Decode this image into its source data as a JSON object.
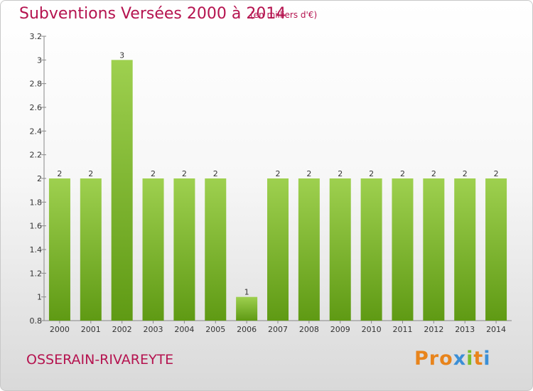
{
  "header": {
    "title": "Subventions Versées 2000 à 2014",
    "unit_note": "(en milliers d'€)"
  },
  "footer": {
    "commune": "OSSERAIN-RIVAREYTE",
    "logo_text": "Proxiti"
  },
  "colors": {
    "title": "#b5134f",
    "bar_light": "#9ed04f",
    "bar_dark": "#5f9a14",
    "logo_letters": [
      "#e8841c",
      "#e8841c",
      "#e8841c",
      "#3b8fd6",
      "#7bbf2b",
      "#e8841c",
      "#3b8fd6"
    ]
  },
  "chart_data": {
    "type": "bar",
    "categories": [
      "2000",
      "2001",
      "2002",
      "2003",
      "2004",
      "2005",
      "2006",
      "2007",
      "2008",
      "2009",
      "2010",
      "2011",
      "2012",
      "2013",
      "2014"
    ],
    "values": [
      2,
      2,
      3,
      2,
      2,
      2,
      1,
      2,
      2,
      2,
      2,
      2,
      2,
      2,
      2
    ],
    "data_labels": [
      "2",
      "2",
      "3",
      "2",
      "2",
      "2",
      "1",
      "2",
      "2",
      "2",
      "2",
      "2",
      "2",
      "2",
      "2"
    ],
    "yticks": [
      "0.8",
      "1",
      "1.2",
      "1.4",
      "1.6",
      "1.8",
      "2",
      "2.2",
      "2.4",
      "2.6",
      "2.8",
      "3",
      "3.2"
    ],
    "ylim": [
      0.8,
      3.2
    ],
    "grid": false,
    "legend": "none"
  }
}
